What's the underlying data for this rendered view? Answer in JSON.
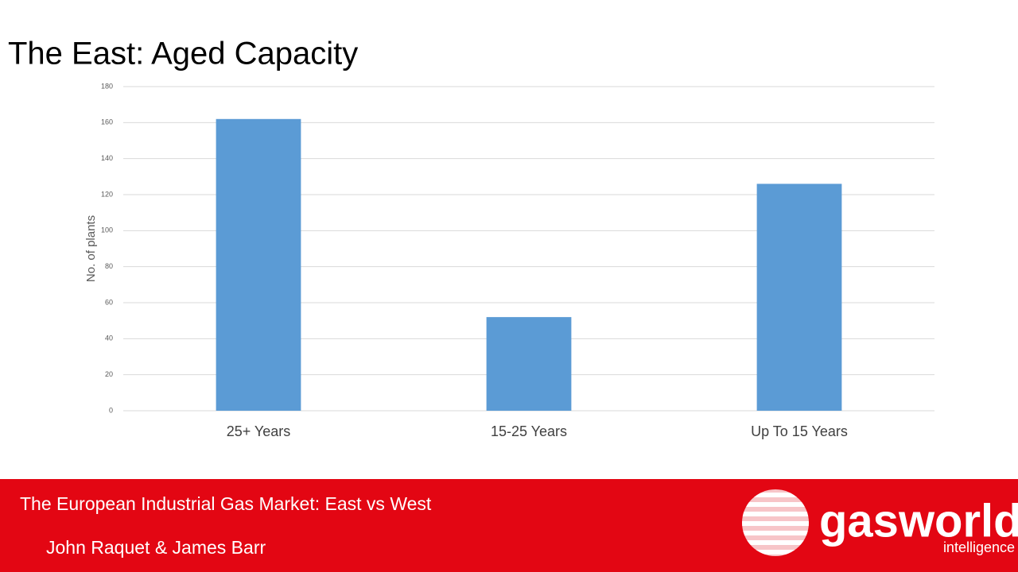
{
  "chart_data": {
    "type": "bar",
    "title": "The East: Aged Capacity",
    "ylabel": "No. of plants",
    "categories": [
      "25+ Years",
      "15-25 Years",
      "Up To 15 Years"
    ],
    "values": [
      162,
      52,
      126
    ],
    "color": "#5b9bd5",
    "ylim": [
      0,
      180
    ],
    "yticks": [
      0,
      20,
      40,
      60,
      80,
      100,
      120,
      140,
      160,
      180
    ],
    "grid": true
  },
  "footer": {
    "subtitle": "The European Industrial Gas Market: East vs West",
    "authors": "John Raquet & James Barr",
    "logo": {
      "name": "gasworld",
      "tagline": "intelligence"
    }
  }
}
